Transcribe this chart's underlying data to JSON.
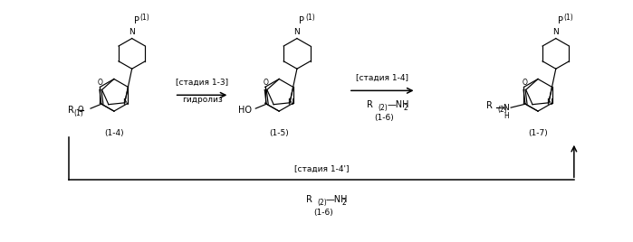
{
  "bg_color": "#ffffff",
  "fig_width": 6.99,
  "fig_height": 2.68,
  "dpi": 100,
  "mol14_label": "(1-4)",
  "mol15_label": "(1-5)",
  "mol16_label": "(1-6)",
  "mol17_label": "(1-7)",
  "arrow1_label1": "[стадия 1-3]",
  "arrow1_label2": "гидролиз",
  "arrow2_label1": "[стадия 1-4]",
  "bottom_label": "[стадия 1-4']",
  "r1_label": "R",
  "r1_sub": "(1)",
  "r2_label": "R",
  "r2_sub": "(2)",
  "nh2_label": "—NH",
  "nh2_sub": "2",
  "ho_label": "HO",
  "p1_label": "P",
  "p1_sub": "(1)",
  "n_label": "N",
  "o_label": "O",
  "h_label": "H",
  "font_main": 7.0,
  "font_sub": 5.5,
  "font_label": 6.5,
  "lw": 0.85
}
